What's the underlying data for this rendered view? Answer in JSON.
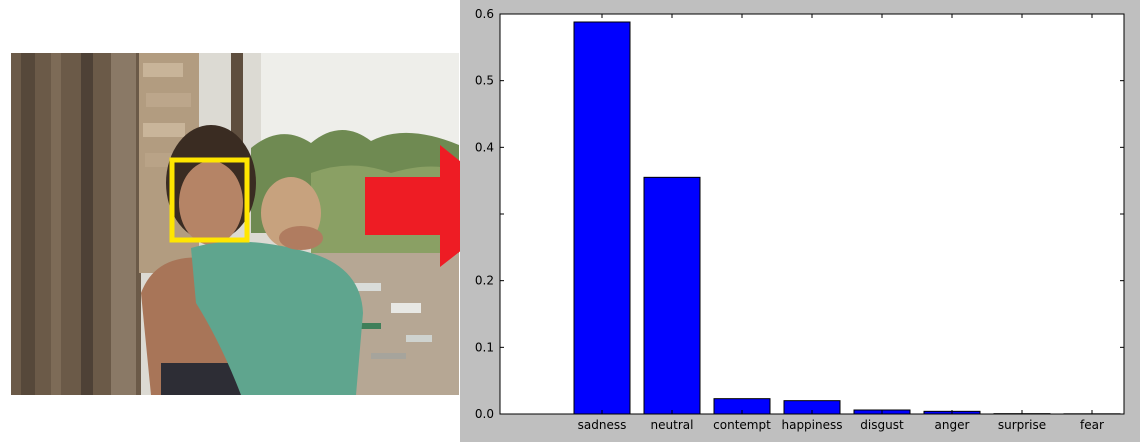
{
  "colors": {
    "bar": "#0000ff",
    "bar_edge": "#000000",
    "arrow": "#ee1c24",
    "face_box": "#ffe600",
    "figure_background": "#bfbfbf",
    "axes_background": "#ffffff"
  },
  "photo": {
    "subject": "woman-hugging-child",
    "face_box_icon": "face-detection-box"
  },
  "arrow_icon": "right-arrow-icon",
  "chart_data": {
    "type": "bar",
    "title": "",
    "xlabel": "",
    "ylabel": "",
    "categories": [
      "sadness",
      "neutral",
      "contempt",
      "happiness",
      "disgust",
      "anger",
      "surprise",
      "fear"
    ],
    "values": [
      0.588,
      0.355,
      0.023,
      0.02,
      0.006,
      0.004,
      0.0005,
      0.0003
    ],
    "ylim": [
      0.0,
      0.6
    ],
    "yticks": [
      "0.0",
      "0.1",
      "0.2",
      "",
      "0.4",
      "0.5",
      "0.6"
    ],
    "grid": false
  }
}
